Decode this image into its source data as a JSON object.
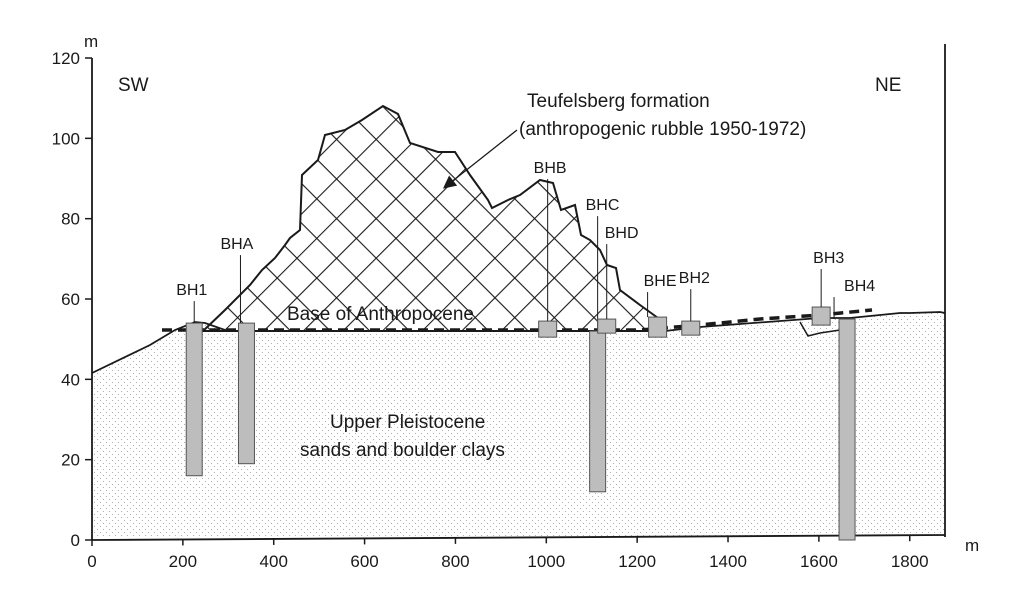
{
  "axes": {
    "x_unit": "m",
    "y_unit": "m",
    "x_ticks": [
      "0",
      "200",
      "400",
      "600",
      "800",
      "1000",
      "1200",
      "1400",
      "1600",
      "1800"
    ],
    "y_ticks": [
      "0",
      "20",
      "40",
      "60",
      "80",
      "100",
      "120"
    ],
    "xlim": [
      0,
      1850
    ],
    "ylim": [
      0,
      120
    ]
  },
  "directions": {
    "left": "SW",
    "right": "NE"
  },
  "annotations": {
    "formation_line1": "Teufelsberg formation",
    "formation_line2": "(anthropogenic rubble 1950-1972)",
    "base": "Base of Anthropocene",
    "pleistocene_line1": "Upper Pleistocene",
    "pleistocene_line2": "sands and boulder clays"
  },
  "boreholes": [
    {
      "name": "BH1",
      "x": 225,
      "top": 54,
      "bottom": 16,
      "kind": "long"
    },
    {
      "name": "BHA",
      "x": 340,
      "top": 54,
      "bottom": 19,
      "kind": "long"
    },
    {
      "name": "BHB",
      "x": 1003,
      "top": 54.5,
      "bottom": 50.5,
      "kind": "short"
    },
    {
      "name": "BHC",
      "x": 1113,
      "top": 52,
      "bottom": 12,
      "kind": "long"
    },
    {
      "name": "BHD",
      "x": 1133,
      "top": 55,
      "bottom": 51.5,
      "kind": "short"
    },
    {
      "name": "BHE",
      "x": 1245,
      "top": 55.5,
      "bottom": 50.5,
      "kind": "short"
    },
    {
      "name": "BH2",
      "x": 1318,
      "top": 54.5,
      "bottom": 51,
      "kind": "short"
    },
    {
      "name": "BH3",
      "x": 1605,
      "top": 58,
      "bottom": 53.5,
      "kind": "short"
    },
    {
      "name": "BH4",
      "x": 1662,
      "top": 55,
      "bottom": 0,
      "kind": "long"
    }
  ],
  "colors": {
    "borehole_fill": "#bdbdbd",
    "stroke": "#1a1a1a",
    "stipple": "#9a9a9a"
  }
}
